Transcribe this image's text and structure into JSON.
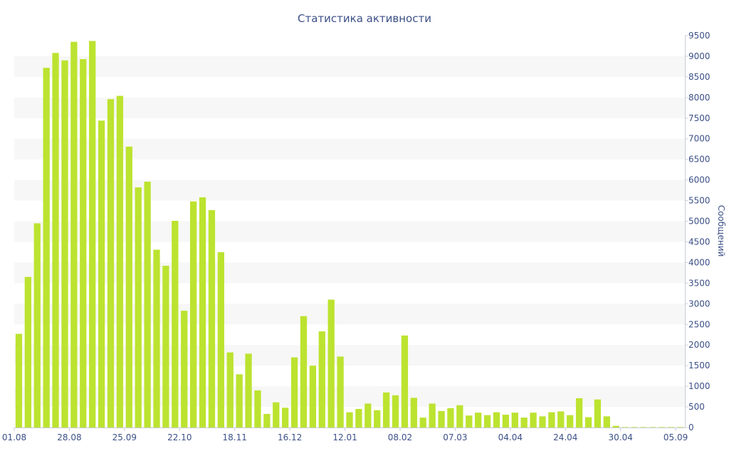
{
  "chart_data": {
    "type": "bar",
    "title": "Статистика активности",
    "xlabel": "",
    "ylabel": "Сообщений",
    "ylim": [
      0,
      9500
    ],
    "y_ticks": [
      0,
      500,
      1000,
      1500,
      2000,
      2500,
      3000,
      3500,
      4000,
      4500,
      5000,
      5500,
      6000,
      6500,
      7000,
      7500,
      8000,
      8500,
      9000,
      9500
    ],
    "x_tick_labels": [
      {
        "index": 0,
        "label": "01.08"
      },
      {
        "index": 6,
        "label": "28.08"
      },
      {
        "index": 12,
        "label": "25.09"
      },
      {
        "index": 18,
        "label": "22.10"
      },
      {
        "index": 24,
        "label": "18.11"
      },
      {
        "index": 30,
        "label": "16.12"
      },
      {
        "index": 36,
        "label": "12.01"
      },
      {
        "index": 42,
        "label": "08.02"
      },
      {
        "index": 48,
        "label": "07.03"
      },
      {
        "index": 54,
        "label": "04.04"
      },
      {
        "index": 60,
        "label": "24.04"
      },
      {
        "index": 66,
        "label": "30.04"
      },
      {
        "index": 72,
        "label": "05.09"
      }
    ],
    "values": [
      2270,
      3650,
      4950,
      8720,
      9080,
      8900,
      9350,
      8930,
      9370,
      7440,
      7960,
      8040,
      6810,
      5820,
      5960,
      4310,
      3920,
      5010,
      2830,
      5480,
      5580,
      5270,
      4250,
      1820,
      1290,
      1790,
      900,
      330,
      610,
      480,
      1700,
      2700,
      1500,
      2330,
      3100,
      1720,
      370,
      450,
      580,
      420,
      850,
      780,
      2230,
      720,
      240,
      580,
      400,
      470,
      540,
      290,
      360,
      300,
      370,
      310,
      360,
      240,
      360,
      270,
      370,
      390,
      300,
      710,
      250,
      680,
      270,
      40,
      10,
      10,
      10,
      10,
      10,
      10,
      10
    ],
    "bar_color": "#bce330",
    "band_color": "#f7f7f7",
    "axis_text_color": "#3c5087",
    "grid": "alternating horizontal bands",
    "legend": "none"
  }
}
